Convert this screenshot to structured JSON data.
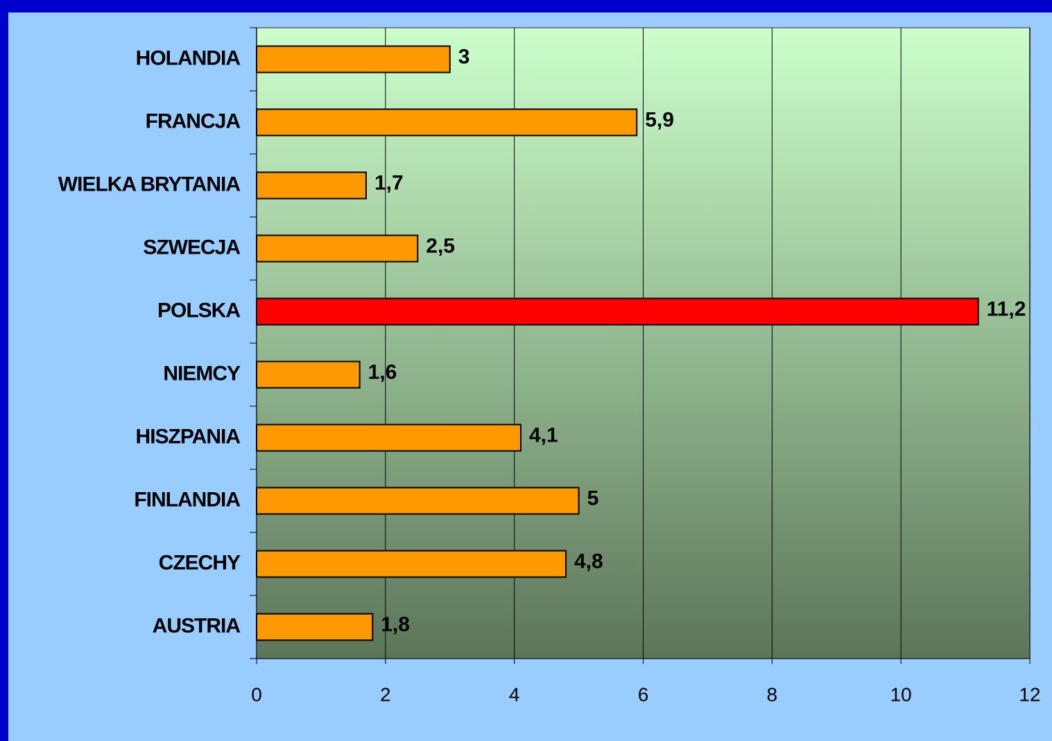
{
  "chart_data": {
    "type": "bar",
    "orientation": "horizontal",
    "categories": [
      "HOLANDIA",
      "FRANCJA",
      "WIELKA BRYTANIA",
      "SZWECJA",
      "POLSKA",
      "NIEMCY",
      "HISZPANIA",
      "FINLANDIA",
      "CZECHY",
      "AUSTRIA"
    ],
    "values": [
      3,
      5.9,
      1.7,
      2.5,
      11.2,
      1.6,
      4.1,
      5,
      4.8,
      1.8
    ],
    "value_labels": [
      "3",
      "5,9",
      "1,7",
      "2,5",
      "11,2",
      "1,6",
      "4,1",
      "5",
      "4,8",
      "1,8"
    ],
    "colors": [
      "#FF9900",
      "#FF9900",
      "#FF9900",
      "#FF9900",
      "#FF0000",
      "#FF9900",
      "#FF9900",
      "#FF9900",
      "#FF9900",
      "#FF9900"
    ],
    "xlim": [
      0,
      12
    ],
    "xticks": [
      0,
      2,
      4,
      6,
      8,
      10,
      12
    ],
    "grid": true
  }
}
